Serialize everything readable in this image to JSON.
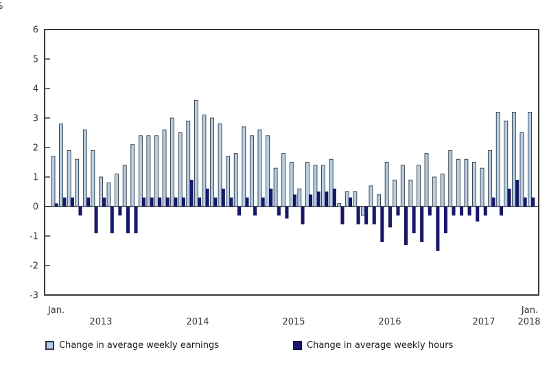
{
  "chart_data": {
    "type": "bar",
    "title": "",
    "ylabel": "%",
    "xlabel": "",
    "ylim": [
      -3,
      6
    ],
    "yticks": [
      6,
      5,
      4,
      3,
      2,
      1,
      0,
      -1,
      -2,
      -3
    ],
    "grid": "off (zero baseline only)",
    "legend_position": "bottom",
    "start_year": 2013,
    "start_month": 1,
    "x_axis_labels": {
      "jan_left": "Jan.",
      "years": [
        "2013",
        "2014",
        "2015",
        "2016",
        "2017"
      ],
      "jan_right": "Jan.",
      "year_right": "2018"
    },
    "series": [
      {
        "name": "Change in average weekly earnings",
        "color": "#b4cde2",
        "values": [
          1.7,
          2.8,
          1.9,
          1.6,
          2.6,
          1.9,
          1.0,
          0.8,
          1.1,
          1.4,
          2.1,
          2.4,
          2.4,
          2.4,
          2.6,
          3.0,
          2.5,
          2.9,
          3.6,
          3.1,
          3.0,
          2.8,
          1.7,
          1.8,
          2.7,
          2.4,
          2.6,
          2.4,
          1.3,
          1.8,
          1.5,
          0.6,
          1.5,
          1.4,
          1.4,
          1.6,
          0.1,
          0.5,
          0.5,
          -0.3,
          0.7,
          0.4,
          1.5,
          0.9,
          1.4,
          0.9,
          1.4,
          1.8,
          1.0,
          1.1,
          1.9,
          1.6,
          1.6,
          1.5,
          1.3,
          1.9,
          3.2,
          2.9,
          3.2,
          2.5,
          3.2
        ]
      },
      {
        "name": "Change in average weekly hours",
        "color": "#17176d",
        "values": [
          0.1,
          0.3,
          0.3,
          -0.3,
          0.3,
          -0.9,
          0.3,
          -0.9,
          -0.3,
          -0.9,
          -0.9,
          0.3,
          0.3,
          0.3,
          0.3,
          0.3,
          0.3,
          0.9,
          0.3,
          0.6,
          0.3,
          0.6,
          0.3,
          -0.3,
          0.3,
          -0.3,
          0.3,
          0.6,
          -0.3,
          -0.4,
          0.4,
          -0.6,
          0.4,
          0.5,
          0.5,
          0.6,
          -0.6,
          0.3,
          -0.6,
          -0.6,
          -0.6,
          -1.2,
          -0.7,
          -0.3,
          -1.3,
          -0.9,
          -1.2,
          -0.3,
          -1.5,
          -0.9,
          -0.3,
          -0.3,
          -0.3,
          -0.5,
          -0.3,
          0.3,
          -0.3,
          0.6,
          0.9,
          0.3,
          0.3
        ]
      }
    ]
  },
  "legend": {
    "earnings": "Change in average weekly earnings",
    "hours": "Change in average weekly hours"
  },
  "style": {
    "axis_color": "#3a3a3a",
    "zero_line_color": "#2b2b2b",
    "tick_label_color": "#333333",
    "bar_outline": "#1c2430"
  }
}
